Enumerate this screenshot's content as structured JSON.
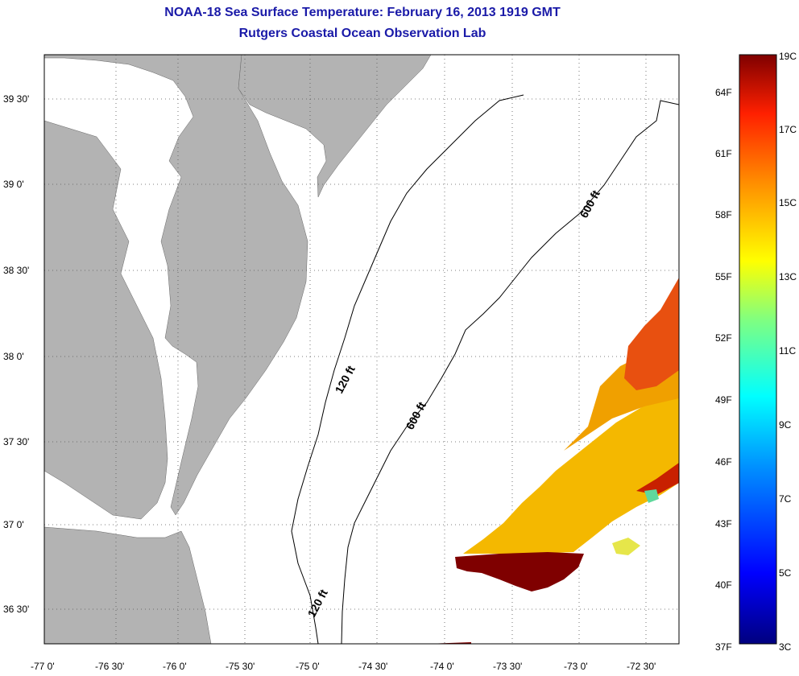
{
  "title": "NOAA-18 Sea Surface Temperature:  February 16, 2013 1919 GMT",
  "subtitle": "Rutgers Coastal Ocean Observation Lab",
  "lat_labels": [
    "39 30'",
    "39 0'",
    "38 30'",
    "38 0'",
    "37 30'",
    "37 0'",
    "36 30'"
  ],
  "lon_labels": [
    "-77 0'",
    "-76 30'",
    "-76 0'",
    "-75 30'",
    "-75 0'",
    "-74 30'",
    "-74 0'",
    "-73 30'",
    "-73 0'",
    "-72 30'"
  ],
  "isobath_labels": {
    "a": "600 ft",
    "b": "120 ft",
    "c": "600 ft",
    "d": "120 ft"
  },
  "colorbar": {
    "fahrenheit": [
      "64F",
      "61F",
      "58F",
      "55F",
      "52F",
      "49F",
      "46F",
      "43F",
      "40F",
      "37F"
    ],
    "celsius": [
      "19C",
      "17C",
      "15C",
      "13C",
      "11C",
      "9C",
      "7C",
      "5C",
      "3C"
    ]
  },
  "colors": {
    "title": "#1a1aa8",
    "land": "#b3b3b3",
    "grid": "#555555"
  }
}
